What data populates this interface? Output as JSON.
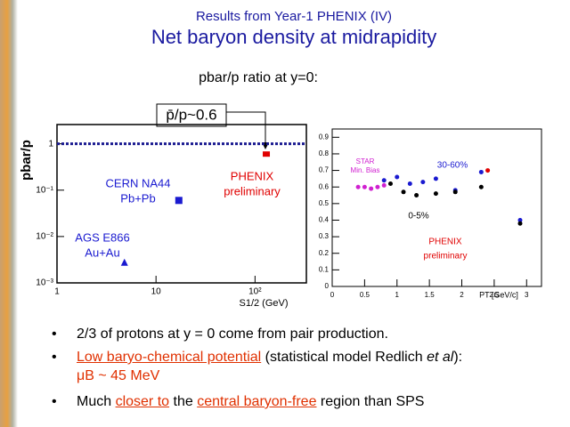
{
  "slide": {
    "kicker": "Results from Year-1 PHENIX (IV)",
    "title": "Net baryon density at midrapidity",
    "subtitle": "pbar/p ratio at y=0:",
    "callout": "p̄/p~0.6",
    "bullets": [
      {
        "parts": [
          "2/3 of protons at y = 0 come from pair production."
        ]
      },
      {
        "parts": [
          "Low baryo-chemical potential",
          " (statistical model Redlich ",
          "et al",
          "):"
        ],
        "line2": "μB ~ 45 MeV"
      },
      {
        "parts": [
          "Much ",
          "closer to",
          " the ",
          "central baryon-free",
          " region than SPS"
        ]
      }
    ]
  },
  "chart_data": [
    {
      "type": "scatter",
      "xlabel": "S1/2 (GeV)",
      "ylabel": "pbar/p",
      "xscale": "log",
      "yscale": "log",
      "xlim": [
        1,
        330
      ],
      "ylim": [
        0.001,
        2.6
      ],
      "xticks": [
        1,
        10,
        {
          "value": 100,
          "label": "10²"
        }
      ],
      "yticks": [
        {
          "value": 0.001,
          "label": "10⁻³"
        },
        {
          "value": 0.01,
          "label": "10⁻²"
        },
        {
          "value": 0.1,
          "label": "10⁻¹"
        },
        1
      ],
      "reference_line": 1,
      "series": [
        {
          "name": "PHENIX",
          "sublabel": "preliminary",
          "color": "#e00000",
          "marker": "rect",
          "x": [
            130
          ],
          "values": [
            0.6
          ]
        },
        {
          "name": "CERN NA44",
          "sublabel": "Pb+Pb",
          "color": "#1a1ad0",
          "marker": "square",
          "x": [
            17
          ],
          "values": [
            0.06
          ]
        },
        {
          "name": "AGS E866",
          "sublabel": "Au+Au",
          "color": "#1a1ad0",
          "marker": "triangle",
          "x": [
            4.8
          ],
          "values": [
            0.0028
          ]
        }
      ]
    },
    {
      "type": "scatter",
      "xlabel": "PT [GeV/c]",
      "xlim": [
        0,
        3.23
      ],
      "ylim": [
        0,
        0.95
      ],
      "xticks": [
        0,
        0.5,
        1,
        1.5,
        2,
        2.5,
        3
      ],
      "yticks": [
        0,
        0.1,
        0.2,
        0.3,
        0.4,
        0.5,
        0.6,
        0.7,
        0.8,
        0.9
      ],
      "series": [
        {
          "name": "STAR",
          "sublabel": "Min. Bias",
          "color": "#d020d0",
          "marker": "circle",
          "x": [
            0.4,
            0.5,
            0.6,
            0.7,
            0.8
          ],
          "values": [
            0.6,
            0.6,
            0.59,
            0.6,
            0.61
          ]
        },
        {
          "name": "30-60%",
          "color": "#1a1ad0",
          "marker": "circle",
          "x": [
            0.8,
            1.0,
            1.2,
            1.4,
            1.6,
            1.9,
            2.3,
            2.9
          ],
          "values": [
            0.64,
            0.66,
            0.62,
            0.63,
            0.65,
            0.58,
            0.69,
            0.4
          ]
        },
        {
          "name": "0-5%",
          "color": "#000000",
          "marker": "circle",
          "x": [
            0.9,
            1.1,
            1.3,
            1.6,
            1.9,
            2.3,
            2.9
          ],
          "values": [
            0.62,
            0.57,
            0.55,
            0.56,
            0.57,
            0.6,
            0.38
          ]
        },
        {
          "name": "PHENIX",
          "sublabel": "preliminary",
          "color": "#e00000",
          "marker": "circle",
          "x": [
            2.4
          ],
          "values": [
            0.7
          ]
        }
      ]
    }
  ]
}
